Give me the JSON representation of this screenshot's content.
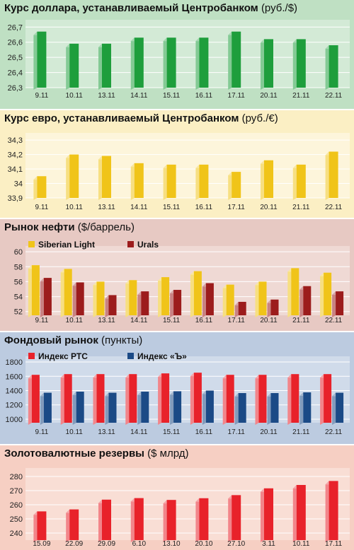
{
  "chart_data": [
    {
      "type": "bar",
      "title": "Курс доллара, устанавливаемый Центробанком",
      "unit": "(руб./$)",
      "categories": [
        "9.11",
        "10.11",
        "13.11",
        "14.11",
        "15.11",
        "16.11",
        "17.11",
        "20.11",
        "21.11",
        "22.11"
      ],
      "series": [
        {
          "values": [
            26.67,
            26.59,
            26.59,
            26.63,
            26.63,
            26.63,
            26.67,
            26.62,
            26.62,
            26.58
          ],
          "color": "#1e9e3c"
        }
      ],
      "yticks": [
        26.3,
        26.4,
        26.5,
        26.6,
        26.7
      ],
      "ylim": [
        26.3,
        26.72
      ],
      "background": "#bfe0c3"
    },
    {
      "type": "bar",
      "title": "Курс евро, устанавливаемый Центробанком",
      "unit": "(руб./€)",
      "categories": [
        "9.11",
        "10.11",
        "13.11",
        "14.11",
        "15.11",
        "16.11",
        "17.11",
        "20.11",
        "21.11",
        "22.11"
      ],
      "series": [
        {
          "values": [
            34.05,
            34.2,
            34.19,
            34.14,
            34.13,
            34.13,
            34.08,
            34.16,
            34.13,
            34.22
          ],
          "color": "#f0c419"
        }
      ],
      "yticks": [
        33.9,
        34.0,
        34.1,
        34.2,
        34.3
      ],
      "ylim": [
        33.9,
        34.32
      ],
      "background": "#fbefc4"
    },
    {
      "type": "bar",
      "title": "Рынок нефти",
      "unit": "($/баррель)",
      "categories": [
        "9.11",
        "10.11",
        "13.11",
        "14.11",
        "15.11",
        "16.11",
        "17.11",
        "20.11",
        "21.11",
        "22.11"
      ],
      "series": [
        {
          "name": "Siberian Light",
          "values": [
            58.2,
            57.7,
            56.0,
            56.2,
            56.6,
            57.4,
            55.6,
            56.0,
            57.8,
            57.2
          ],
          "color": "#f0c419"
        },
        {
          "name": "Urals",
          "values": [
            56.5,
            55.9,
            54.2,
            54.7,
            54.9,
            55.8,
            53.3,
            53.6,
            55.4,
            54.7
          ],
          "color": "#9c1c1c"
        }
      ],
      "yticks": [
        52,
        54,
        56,
        58,
        60
      ],
      "ylim": [
        51.5,
        60.2
      ],
      "legend": "top-left",
      "background": "#e7c9c3"
    },
    {
      "type": "bar",
      "title": "Фондовый рынок",
      "unit": "(пункты)",
      "categories": [
        "9.11",
        "10.11",
        "13.11",
        "14.11",
        "15.11",
        "16.11",
        "17.11",
        "20.11",
        "21.11",
        "22.11"
      ],
      "series": [
        {
          "name": "Индекс РТС",
          "values": [
            1620,
            1630,
            1630,
            1630,
            1640,
            1650,
            1620,
            1620,
            1630,
            1630
          ],
          "color": "#e8222a"
        },
        {
          "name": "Индекс «Ъ»",
          "values": [
            1370,
            1385,
            1370,
            1385,
            1390,
            1400,
            1365,
            1365,
            1375,
            1370
          ],
          "color": "#1b4a86"
        }
      ],
      "yticks": [
        1000,
        1200,
        1400,
        1600,
        1800
      ],
      "ylim": [
        950,
        1820
      ],
      "legend": "top-left",
      "background": "#bccbe0"
    },
    {
      "type": "bar",
      "title": "Золотовалютные резервы",
      "unit": "($ млрд)",
      "categories": [
        "15.09",
        "22.09",
        "29.09",
        "6.10",
        "13.10",
        "20.10",
        "27.10",
        "3.11",
        "10.11",
        "17.11"
      ],
      "series": [
        {
          "values": [
            255.3,
            256.7,
            263.6,
            264.7,
            263.4,
            264.6,
            266.8,
            271.6,
            274.0,
            276.8
          ],
          "color": "#e8222a"
        }
      ],
      "yticks": [
        240,
        250,
        260,
        270,
        280
      ],
      "ylim": [
        235,
        283
      ],
      "background": "#f6cfc3"
    }
  ]
}
